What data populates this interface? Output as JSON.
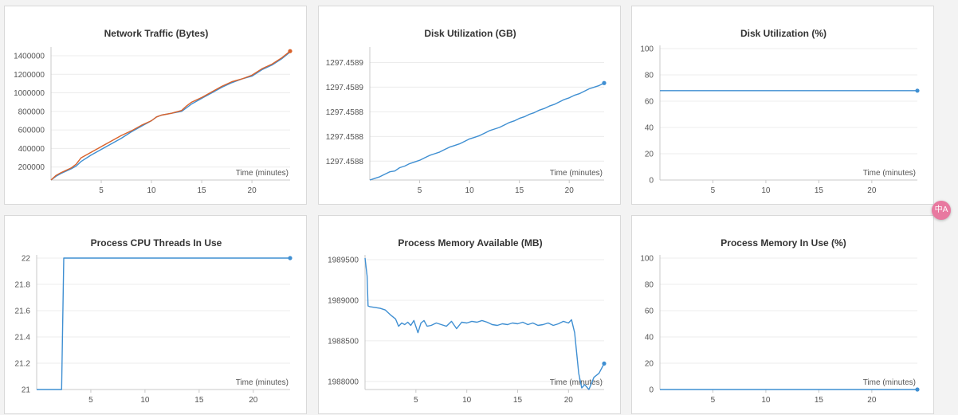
{
  "x_axis_label": "Time (minutes)",
  "colors": {
    "series_primary": "#3f8fd2",
    "series_secondary": "#d9622b",
    "translate_button": "#e879a0"
  },
  "translate_button": {
    "icon": "translate-icon"
  },
  "chart_data": [
    {
      "id": "network",
      "type": "line",
      "title": "Network Traffic (Bytes)",
      "xlabel": "Time (minutes)",
      "xlim": [
        0,
        23.8
      ],
      "x_ticks": [
        5,
        10,
        15,
        20
      ],
      "ylim": [
        60000,
        1460000
      ],
      "y_ticks": [
        200000,
        400000,
        600000,
        800000,
        1000000,
        1200000,
        1400000
      ],
      "grid": true,
      "series": [
        {
          "color": "#3f8fd2",
          "end_marker": false,
          "x": [
            0,
            0.5,
            1,
            2,
            2.5,
            3,
            4,
            5,
            6,
            7,
            8,
            9,
            10,
            10.5,
            11,
            12,
            13,
            13.5,
            14,
            15,
            16,
            17,
            18,
            19,
            20,
            21,
            22,
            23,
            23.8
          ],
          "y": [
            60000,
            100000,
            130000,
            180000,
            210000,
            260000,
            330000,
            390000,
            450000,
            510000,
            580000,
            640000,
            700000,
            740000,
            760000,
            780000,
            800000,
            840000,
            880000,
            940000,
            1000000,
            1060000,
            1110000,
            1150000,
            1180000,
            1250000,
            1300000,
            1370000,
            1440000
          ]
        },
        {
          "color": "#d9622b",
          "end_marker": true,
          "x": [
            0,
            0.5,
            1,
            2,
            2.5,
            3,
            4,
            5,
            6,
            7,
            8,
            9,
            10,
            10.5,
            11,
            12,
            13,
            13.5,
            14,
            15,
            16,
            17,
            18,
            19,
            20,
            21,
            22,
            23,
            23.8
          ],
          "y": [
            60000,
            110000,
            140000,
            190000,
            230000,
            300000,
            360000,
            420000,
            480000,
            540000,
            590000,
            650000,
            700000,
            740000,
            760000,
            780000,
            810000,
            860000,
            900000,
            950000,
            1010000,
            1070000,
            1120000,
            1150000,
            1190000,
            1260000,
            1310000,
            1380000,
            1450000
          ]
        }
      ]
    },
    {
      "id": "disk_gb",
      "type": "line",
      "title": "Disk Utilization (GB)",
      "xlabel": "Time (minutes)",
      "xlim": [
        0,
        23.5
      ],
      "x_ticks": [
        5,
        10,
        15,
        20
      ],
      "ylim": [
        1297.458747,
        1297.458905
      ],
      "y_ticks": [
        1297.45877,
        1297.4588,
        1297.45883,
        1297.45886,
        1297.45889
      ],
      "y_tick_labels": [
        "1297.4588",
        "1297.4588",
        "1297.4588",
        "1297.4589",
        "1297.4589"
      ],
      "grid": true,
      "series": [
        {
          "color": "#3f8fd2",
          "end_marker": true,
          "x": [
            0,
            0.5,
            1,
            1.5,
            2,
            2.5,
            3,
            3.5,
            4,
            4.5,
            5,
            5.5,
            6,
            6.5,
            7,
            7.5,
            8,
            8.5,
            9,
            9.5,
            10,
            10.5,
            11,
            11.5,
            12,
            12.5,
            13,
            13.5,
            14,
            14.5,
            15,
            15.5,
            16,
            16.5,
            17,
            17.5,
            18,
            18.5,
            19,
            19.5,
            20,
            20.5,
            21,
            21.5,
            22,
            22.5,
            23,
            23.5
          ],
          "y": [
            1297.458747,
            1297.458749,
            1297.458751,
            1297.458754,
            1297.458757,
            1297.458758,
            1297.458762,
            1297.458764,
            1297.458767,
            1297.458769,
            1297.458771,
            1297.458774,
            1297.458777,
            1297.458779,
            1297.458781,
            1297.458784,
            1297.458787,
            1297.458789,
            1297.458791,
            1297.458794,
            1297.458797,
            1297.458799,
            1297.458801,
            1297.458804,
            1297.458807,
            1297.458809,
            1297.458811,
            1297.458814,
            1297.458817,
            1297.458819,
            1297.458822,
            1297.458824,
            1297.458827,
            1297.458829,
            1297.458832,
            1297.458834,
            1297.458837,
            1297.458839,
            1297.458842,
            1297.458845,
            1297.458847,
            1297.45885,
            1297.458852,
            1297.458855,
            1297.458858,
            1297.45886,
            1297.458862,
            1297.458865
          ]
        }
      ]
    },
    {
      "id": "disk_pct",
      "type": "line",
      "title": "Disk Utilization (%)",
      "xlabel": "Time (minutes)",
      "xlim": [
        0,
        24.3
      ],
      "x_ticks": [
        5,
        10,
        15,
        20
      ],
      "ylim": [
        0,
        100
      ],
      "y_ticks": [
        0,
        20,
        40,
        60,
        80,
        100
      ],
      "grid": true,
      "series": [
        {
          "color": "#3f8fd2",
          "end_marker": true,
          "x": [
            0,
            24.3
          ],
          "y": [
            68,
            68
          ]
        }
      ]
    },
    {
      "id": "threads",
      "type": "line",
      "title": "Process CPU Threads In Use",
      "xlabel": "Time (minutes)",
      "xlim": [
        0,
        23.4
      ],
      "x_ticks": [
        5,
        10,
        15,
        20
      ],
      "ylim": [
        21,
        22
      ],
      "y_ticks": [
        21,
        21.2,
        21.4,
        21.6,
        21.8,
        22
      ],
      "grid": true,
      "series": [
        {
          "color": "#3f8fd2",
          "end_marker": true,
          "x": [
            0,
            2.3,
            2.5,
            23.4
          ],
          "y": [
            21,
            21,
            22,
            22
          ]
        }
      ]
    },
    {
      "id": "mem_avail",
      "type": "line",
      "title": "Process Memory Available (MB)",
      "xlabel": "Time (minutes)",
      "xlim": [
        0,
        23.5
      ],
      "x_ticks": [
        5,
        10,
        15,
        20
      ],
      "ylim": [
        1987900,
        1989520
      ],
      "y_ticks": [
        1988000,
        1988500,
        1989000,
        1989500
      ],
      "grid": true,
      "series": [
        {
          "color": "#3f8fd2",
          "end_marker": true,
          "x": [
            0,
            0.2,
            0.3,
            0.5,
            1,
            1.5,
            2,
            2.5,
            3,
            3.3,
            3.6,
            3.9,
            4.2,
            4.5,
            4.8,
            5.2,
            5.5,
            5.8,
            6.1,
            6.5,
            7,
            7.5,
            8,
            8.5,
            9,
            9.5,
            10,
            10.5,
            11,
            11.5,
            12,
            12.5,
            13,
            13.5,
            14,
            14.5,
            15,
            15.5,
            16,
            16.5,
            17,
            17.5,
            18,
            18.5,
            19,
            19.5,
            20,
            20.3,
            20.6,
            21,
            21.3,
            21.6,
            22,
            22.5,
            23,
            23.5
          ],
          "y": [
            1989520,
            1989300,
            1988930,
            1988920,
            1988910,
            1988900,
            1988880,
            1988820,
            1988770,
            1988680,
            1988720,
            1988700,
            1988730,
            1988690,
            1988750,
            1988600,
            1988720,
            1988750,
            1988680,
            1988690,
            1988720,
            1988700,
            1988680,
            1988740,
            1988650,
            1988730,
            1988720,
            1988740,
            1988730,
            1988750,
            1988730,
            1988700,
            1988690,
            1988710,
            1988700,
            1988720,
            1988710,
            1988730,
            1988700,
            1988720,
            1988690,
            1988700,
            1988720,
            1988690,
            1988710,
            1988740,
            1988720,
            1988760,
            1988600,
            1988100,
            1987920,
            1987960,
            1987900,
            1988050,
            1988100,
            1988220
          ]
        }
      ]
    },
    {
      "id": "mem_pct",
      "type": "line",
      "title": "Process Memory In Use (%)",
      "xlabel": "Time (minutes)",
      "xlim": [
        0,
        24.3
      ],
      "x_ticks": [
        5,
        10,
        15,
        20
      ],
      "ylim": [
        0,
        100
      ],
      "y_ticks": [
        0,
        20,
        40,
        60,
        80,
        100
      ],
      "grid": true,
      "series": [
        {
          "color": "#3f8fd2",
          "end_marker": true,
          "x": [
            0,
            24.3
          ],
          "y": [
            0,
            0
          ]
        }
      ]
    }
  ]
}
